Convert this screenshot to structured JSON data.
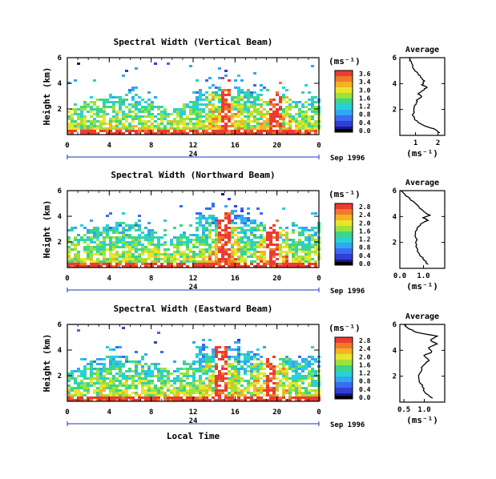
{
  "chart_data": [
    {
      "type": "heatmap",
      "title": "Spectral Width (Vertical Beam)",
      "ylabel": "Height (km)",
      "yticks": [
        "6",
        "4",
        "2"
      ],
      "xticks": [
        "0",
        "4",
        "8",
        "12",
        "16",
        "20",
        "0"
      ],
      "date_marker": "24",
      "date_label": "Sep 1996",
      "xlim": [
        0,
        24
      ],
      "ylim": [
        0,
        6
      ],
      "colorbar": {
        "unit_label": "(ms⁻¹)",
        "ticks": [
          "3.6",
          "3.4",
          "3.0",
          "1.6",
          "1.2",
          "0.8",
          "0.4",
          "0.0"
        ]
      },
      "spikes": [
        15.0,
        19.8
      ],
      "fill_top_km": 3.1,
      "average": {
        "title": "Average",
        "xticks": [
          "1",
          "2"
        ],
        "xlabel": "(ms⁻¹)",
        "yticks": [
          "6",
          "4",
          "2"
        ],
        "xlim": [
          0.3,
          2.3
        ],
        "ylim": [
          0,
          6
        ],
        "profile": [
          [
            2.1,
            0.2
          ],
          [
            1.8,
            0.5
          ],
          [
            1.3,
            0.8
          ],
          [
            1.0,
            1.2
          ],
          [
            0.9,
            1.6
          ],
          [
            0.95,
            2.0
          ],
          [
            1.0,
            2.4
          ],
          [
            1.1,
            2.8
          ],
          [
            1.3,
            3.0
          ],
          [
            1.1,
            3.2
          ],
          [
            1.35,
            3.5
          ],
          [
            1.5,
            3.7
          ],
          [
            1.3,
            3.9
          ],
          [
            1.4,
            4.2
          ],
          [
            1.2,
            4.6
          ],
          [
            0.95,
            5.0
          ],
          [
            0.85,
            5.4
          ],
          [
            0.75,
            5.8
          ],
          [
            0.7,
            6.0
          ]
        ]
      }
    },
    {
      "type": "heatmap",
      "title": "Spectral Width (Northward Beam)",
      "ylabel": "Height (km)",
      "yticks": [
        "6",
        "4",
        "2"
      ],
      "xticks": [
        "0",
        "4",
        "8",
        "12",
        "16",
        "20",
        "0"
      ],
      "date_marker": "24",
      "date_label": "Sep 1996",
      "xlim": [
        0,
        24
      ],
      "ylim": [
        0,
        6
      ],
      "colorbar": {
        "unit_label": "(ms⁻¹)",
        "ticks": [
          "2.8",
          "2.4",
          "2.0",
          "1.6",
          "1.2",
          "0.8",
          "0.4",
          "0.0"
        ]
      },
      "spikes": [
        14.8,
        19.4
      ],
      "fill_top_km": 3.6,
      "average": {
        "title": "Average",
        "xticks": [
          "0.0",
          "1.0"
        ],
        "xlabel": "(ms⁻¹)",
        "yticks": [
          "6",
          "4",
          "2"
        ],
        "xlim": [
          0.0,
          1.9
        ],
        "ylim": [
          0,
          6
        ],
        "profile": [
          [
            1.2,
            0.3
          ],
          [
            1.0,
            0.7
          ],
          [
            0.8,
            1.2
          ],
          [
            0.7,
            1.7
          ],
          [
            0.7,
            2.2
          ],
          [
            0.65,
            2.8
          ],
          [
            0.75,
            3.2
          ],
          [
            0.95,
            3.5
          ],
          [
            1.2,
            3.7
          ],
          [
            1.0,
            3.9
          ],
          [
            1.25,
            4.1
          ],
          [
            1.0,
            4.4
          ],
          [
            0.7,
            4.9
          ],
          [
            0.4,
            5.4
          ],
          [
            0.15,
            5.8
          ],
          [
            0.05,
            6.0
          ]
        ]
      }
    },
    {
      "type": "heatmap",
      "title": "Spectral Width (Eastward Beam)",
      "ylabel": "Height (km)",
      "yticks": [
        "6",
        "4",
        "2"
      ],
      "xticks": [
        "0",
        "4",
        "8",
        "12",
        "16",
        "20",
        "0"
      ],
      "date_marker": "24",
      "date_label": "Sep 1996",
      "xlabel": "Local Time",
      "xlim": [
        0,
        24
      ],
      "ylim": [
        0,
        6
      ],
      "colorbar": {
        "unit_label": "(ms⁻¹)",
        "ticks": [
          "2.8",
          "2.4",
          "2.0",
          "1.6",
          "1.2",
          "0.8",
          "0.4",
          "0.0"
        ]
      },
      "spikes": [
        14.6,
        19.2
      ],
      "fill_top_km": 3.7,
      "average": {
        "title": "Average",
        "xticks": [
          "0.5",
          "1.0"
        ],
        "xlabel": "(ms⁻¹)",
        "yticks": [
          "6",
          "4",
          "2"
        ],
        "xlim": [
          0.4,
          1.5
        ],
        "ylim": [
          0,
          6
        ],
        "profile": [
          [
            1.2,
            0.3
          ],
          [
            1.0,
            0.8
          ],
          [
            0.95,
            1.3
          ],
          [
            0.85,
            1.8
          ],
          [
            0.9,
            2.3
          ],
          [
            0.95,
            2.8
          ],
          [
            1.1,
            3.2
          ],
          [
            1.0,
            3.6
          ],
          [
            1.2,
            3.9
          ],
          [
            1.1,
            4.2
          ],
          [
            1.3,
            4.5
          ],
          [
            1.15,
            4.8
          ],
          [
            1.3,
            5.1
          ],
          [
            0.8,
            5.4
          ],
          [
            0.6,
            5.7
          ],
          [
            0.5,
            6.0
          ]
        ]
      }
    }
  ]
}
